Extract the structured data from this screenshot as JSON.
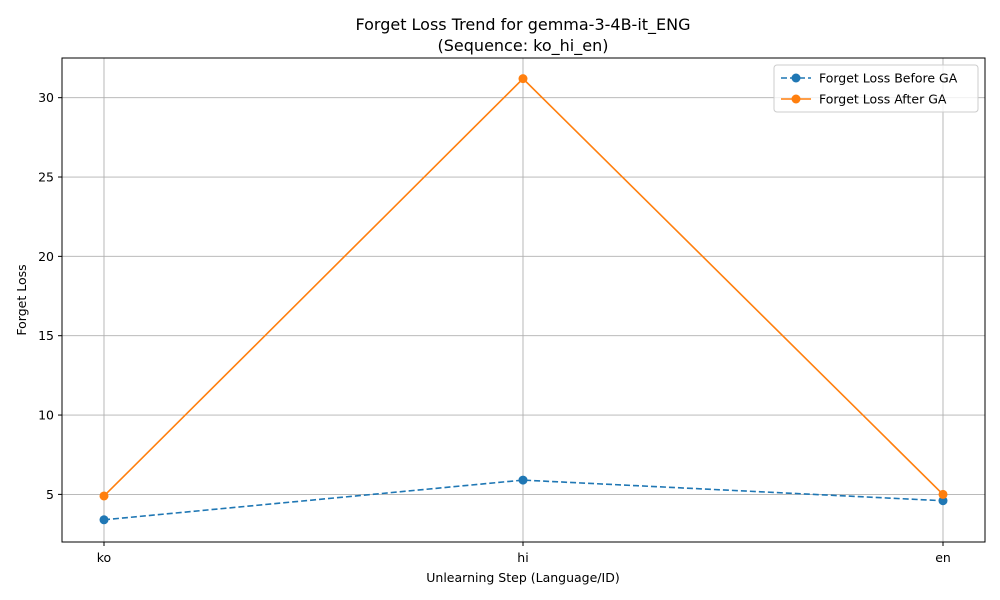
{
  "chart_data": {
    "type": "line",
    "title_line1": "Forget Loss Trend for gemma-3-4B-it_ENG",
    "title_line2": "(Sequence: ko_hi_en)",
    "xlabel": "Unlearning Step (Language/ID)",
    "ylabel": "Forget Loss",
    "categories": [
      "ko",
      "hi",
      "en"
    ],
    "ylim": [
      2.0,
      32.5
    ],
    "yticks": [
      5,
      10,
      15,
      20,
      25,
      30
    ],
    "grid": true,
    "legend_position": "top-right",
    "series": [
      {
        "name": "Forget Loss Before GA",
        "values": [
          3.4,
          5.9,
          4.6
        ],
        "color": "#1f77b4",
        "line_style": "dashed",
        "marker": "circle"
      },
      {
        "name": "Forget Loss After GA",
        "values": [
          4.9,
          31.2,
          5.0
        ],
        "color": "#ff7f0e",
        "line_style": "solid",
        "marker": "circle"
      }
    ]
  }
}
